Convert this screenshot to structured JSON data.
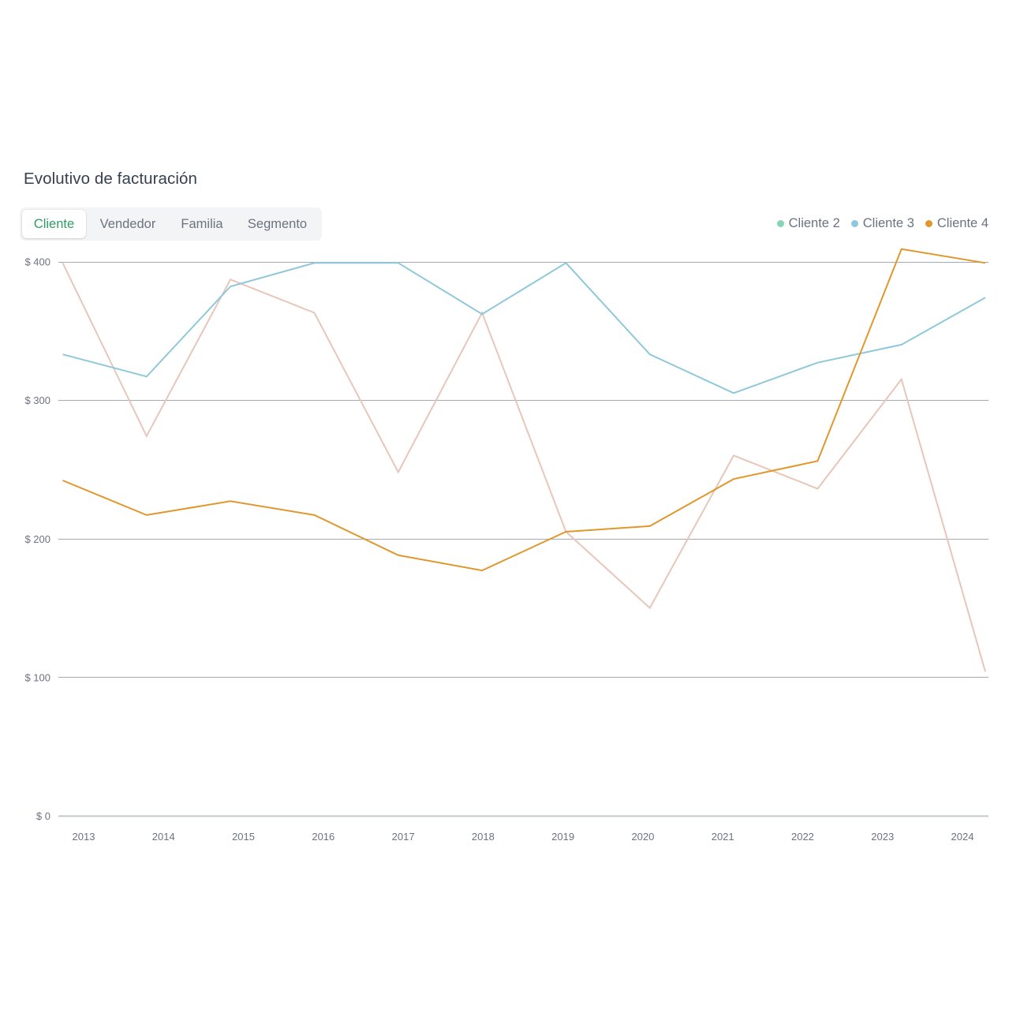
{
  "header": {
    "title": "Evolutivo de facturación"
  },
  "tabs": [
    {
      "label": "Cliente",
      "active": true
    },
    {
      "label": "Vendedor",
      "active": false
    },
    {
      "label": "Familia",
      "active": false
    },
    {
      "label": "Segmento",
      "active": false
    }
  ],
  "legend": [
    {
      "label": "Cliente 2",
      "color": "#86d6b3"
    },
    {
      "label": "Cliente 3",
      "color": "#8ec8da"
    },
    {
      "label": "Cliente 4",
      "color": "#e0972b"
    }
  ],
  "chart_data": {
    "type": "line",
    "title": "Evolutivo de facturación",
    "xlabel": "",
    "ylabel": "",
    "ylim": [
      0,
      400
    ],
    "grid": true,
    "legend_position": "top-right",
    "categories": [
      "2013",
      "2014",
      "2015",
      "2016",
      "2017",
      "2018",
      "2019",
      "2020",
      "2021",
      "2022",
      "2023",
      "2024"
    ],
    "yticks": {
      "values": [
        0,
        100,
        200,
        300,
        400
      ],
      "labels": [
        "$ 0",
        "$ 100",
        "$ 200",
        "$ 300",
        "$ 400"
      ]
    },
    "series": [
      {
        "name": "",
        "in_legend": false,
        "color": "#e8c6b9",
        "values": [
          399,
          274,
          387,
          363,
          248,
          363,
          205,
          150,
          260,
          236,
          315,
          104
        ]
      },
      {
        "name": "Cliente 3",
        "in_legend": true,
        "color": "#8ec8da",
        "values": [
          333,
          317,
          382,
          399,
          399,
          362,
          399,
          333,
          305,
          327,
          340,
          374
        ]
      },
      {
        "name": "Cliente 4",
        "in_legend": true,
        "color": "#e0972b",
        "values": [
          242,
          217,
          227,
          217,
          188,
          177,
          205,
          209,
          243,
          256,
          409,
          399
        ]
      }
    ]
  }
}
